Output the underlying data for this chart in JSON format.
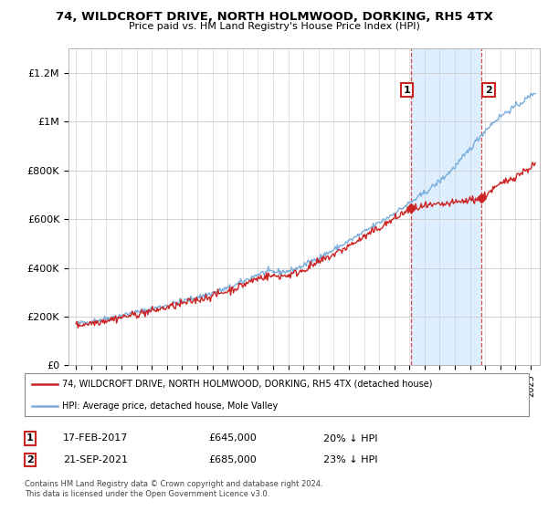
{
  "title": "74, WILDCROFT DRIVE, NORTH HOLMWOOD, DORKING, RH5 4TX",
  "subtitle": "Price paid vs. HM Land Registry's House Price Index (HPI)",
  "ylim": [
    0,
    1300000
  ],
  "yticks": [
    0,
    200000,
    400000,
    600000,
    800000,
    1000000,
    1200000
  ],
  "ytick_labels": [
    "£0",
    "£200K",
    "£400K",
    "£600K",
    "£800K",
    "£1M",
    "£1.2M"
  ],
  "hpi_color": "#7aadda",
  "price_color": "#cc2222",
  "shade_color": "#ddeeff",
  "t1": 2017.12,
  "p1": 645000,
  "t2": 2021.72,
  "p2": 685000,
  "legend_line1": "74, WILDCROFT DRIVE, NORTH HOLMWOOD, DORKING, RH5 4TX (detached house)",
  "legend_line2": "HPI: Average price, detached house, Mole Valley",
  "note1_date": "17-FEB-2017",
  "note1_price": "£645,000",
  "note1_pct": "20% ↓ HPI",
  "note2_date": "21-SEP-2021",
  "note2_price": "£685,000",
  "note2_pct": "23% ↓ HPI",
  "footer": "Contains HM Land Registry data © Crown copyright and database right 2024.\nThis data is licensed under the Open Government Licence v3.0.",
  "background_color": "#ffffff"
}
